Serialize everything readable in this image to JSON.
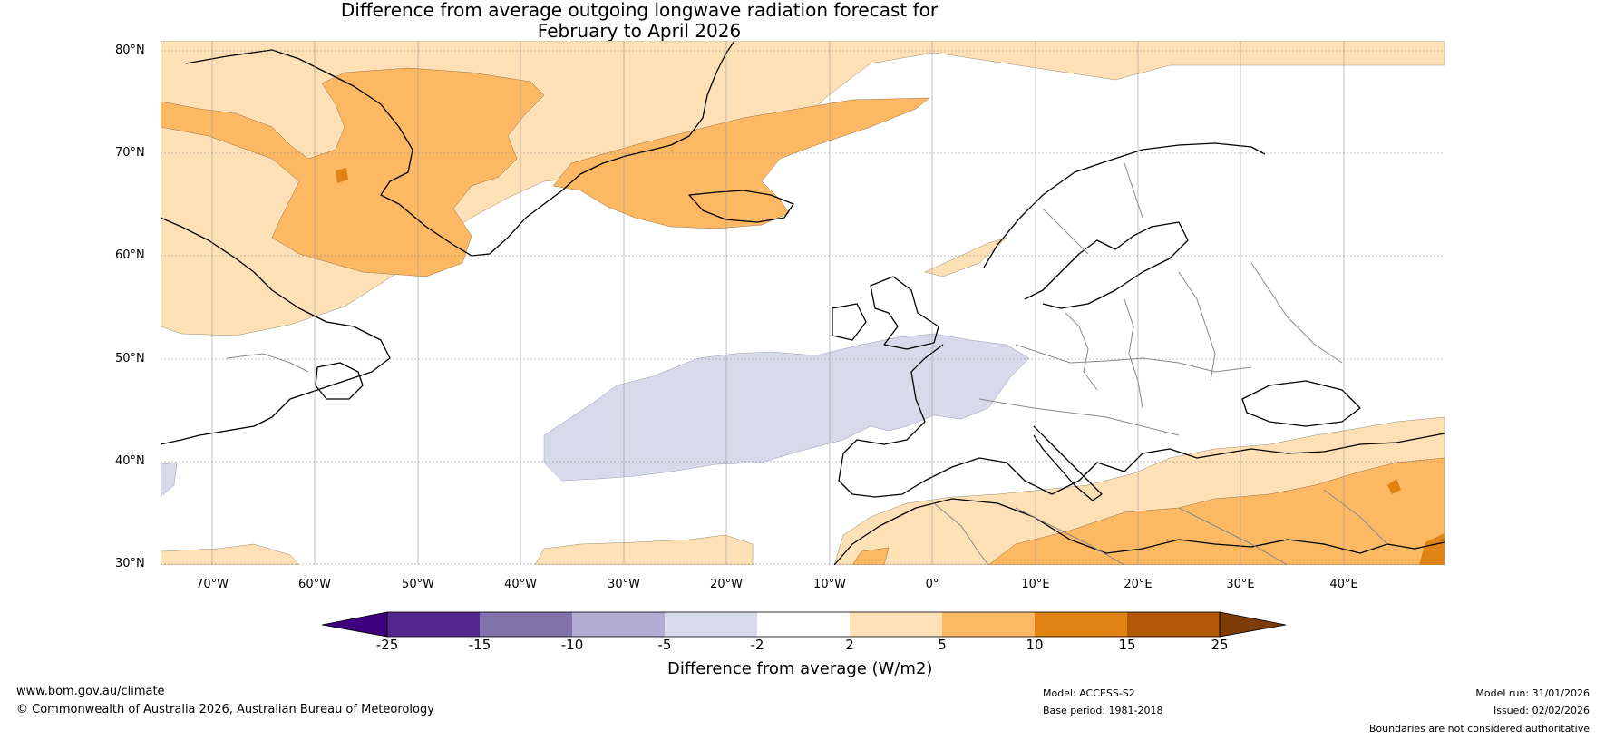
{
  "title": {
    "line1": "Difference from average outgoing longwave radiation forecast for",
    "line2": "February to April 2026"
  },
  "map": {
    "lat_labels": [
      "80°N",
      "70°N",
      "60°N",
      "50°N",
      "40°N",
      "30°N"
    ],
    "lon_labels": [
      "70°W",
      "60°W",
      "50°W",
      "40°W",
      "30°W",
      "20°W",
      "10°W",
      "0°",
      "10°E",
      "20°E",
      "30°E",
      "40°E"
    ],
    "colors": {
      "purple_dark": "#3f007d",
      "purple_1": "#54278f",
      "purple_2": "#8073ac",
      "purple_3": "#b2abd2",
      "purple_light": "#d8daeb",
      "white": "#ffffff",
      "orange_light": "#fee0b6",
      "orange_2": "#fdb863",
      "orange_3": "#e08214",
      "orange_4": "#b35806",
      "orange_dark": "#7f3b08"
    }
  },
  "colorbar": {
    "ticks": [
      "-25",
      "-15",
      "-10",
      "-5",
      "-2",
      "2",
      "5",
      "10",
      "15",
      "25"
    ],
    "title": "Difference from average (W/m2)"
  },
  "footer": {
    "website": "www.bom.gov.au/climate",
    "copyright": "© Commonwealth of Australia 2026, Australian Bureau of Meteorology",
    "model": "Model: ACCESS-S2",
    "base_period": "Base period: 1981-2018",
    "model_run": "Model run: 31/01/2026",
    "issued": "Issued: 02/02/2026",
    "disclaimer": "Boundaries are not considered authoritative"
  }
}
